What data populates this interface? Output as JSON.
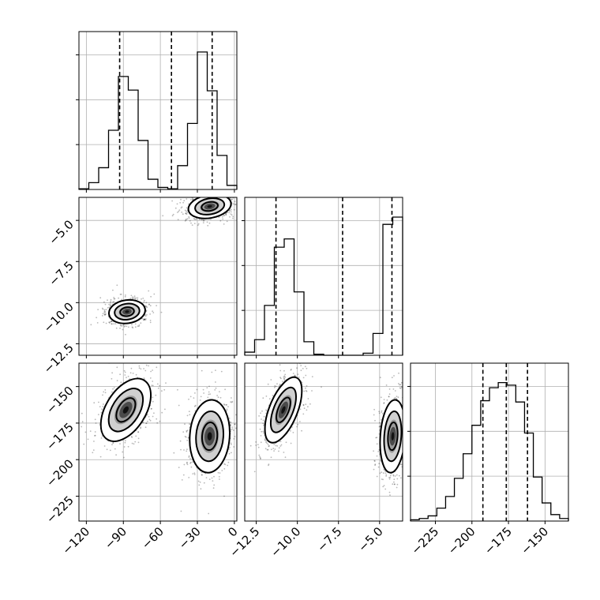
{
  "chart_data": {
    "type": "corner",
    "parameters": [
      {
        "ticks": [
          -120,
          -90,
          -60,
          -30,
          0
        ],
        "tick_labels": [
          "−120",
          "−90",
          "−60",
          "−30",
          "0"
        ]
      },
      {
        "ticks": [
          -12.5,
          -10.0,
          -7.5,
          -5.0
        ],
        "tick_labels": [
          "−12.5",
          "−10.0",
          "−7.5",
          "−5.0"
        ]
      },
      {
        "ticks": [
          -225,
          -200,
          -175,
          -150
        ],
        "tick_labels": [
          "−225",
          "−200",
          "−175",
          "−150"
        ]
      }
    ],
    "histograms": [
      {
        "parameter": 0,
        "bin_edges": [
          -126,
          -118,
          -110,
          -102,
          -94,
          -86,
          -78,
          -70,
          -62,
          -54,
          -46,
          -38,
          -30,
          -22,
          -14,
          -6,
          2
        ],
        "counts": [
          0.01,
          0.1,
          0.32,
          0.87,
          1.66,
          1.46,
          0.72,
          0.15,
          0.03,
          0.01,
          0.35,
          0.97,
          2.02,
          1.45,
          0.5,
          0.06
        ],
        "quantiles": [
          -93.0,
          -51.0,
          -18.0
        ]
      },
      {
        "parameter": 1,
        "bin_edges": [
          -13.2,
          -12.6,
          -12.0,
          -11.4,
          -10.8,
          -10.2,
          -9.6,
          -9.0,
          -8.4,
          -7.8,
          -7.2,
          -6.6,
          -6.0,
          -5.4,
          -4.8,
          -4.2,
          -3.6
        ],
        "counts": [
          0.03,
          0.15,
          0.48,
          1.04,
          1.12,
          0.61,
          0.13,
          0.01,
          0.0,
          0.0,
          0.0,
          0.0,
          0.02,
          0.21,
          1.26,
          1.33
        ],
        "quantiles": [
          -11.3,
          -7.25,
          -4.25
        ]
      },
      {
        "parameter": 2,
        "bin_edges": [
          -242,
          -236,
          -230,
          -224,
          -218,
          -212,
          -206,
          -200,
          -194,
          -188,
          -182,
          -176,
          -170,
          -164,
          -158,
          -152,
          -146,
          -140,
          -134
        ],
        "counts": [
          0.01,
          0.02,
          0.04,
          0.1,
          0.19,
          0.33,
          0.52,
          0.74,
          0.93,
          1.03,
          1.07,
          1.05,
          0.92,
          0.68,
          0.34,
          0.14,
          0.05,
          0.02
        ],
        "quantiles": [
          -192.5,
          -176.5,
          -162.0
        ]
      }
    ],
    "density_panels": [
      {
        "x_parameter": 0,
        "y_parameter": 1,
        "modes": [
          {
            "x": -87,
            "y": -10.55
          },
          {
            "x": -20,
            "y": -4.15
          }
        ]
      },
      {
        "x_parameter": 0,
        "y_parameter": 2,
        "modes": [
          {
            "x": -88,
            "y": -166
          },
          {
            "x": -20,
            "y": -184
          }
        ]
      },
      {
        "x_parameter": 1,
        "y_parameter": 2,
        "modes": [
          {
            "x": -10.85,
            "y": -166
          },
          {
            "x": -4.2,
            "y": -184
          }
        ]
      }
    ]
  }
}
